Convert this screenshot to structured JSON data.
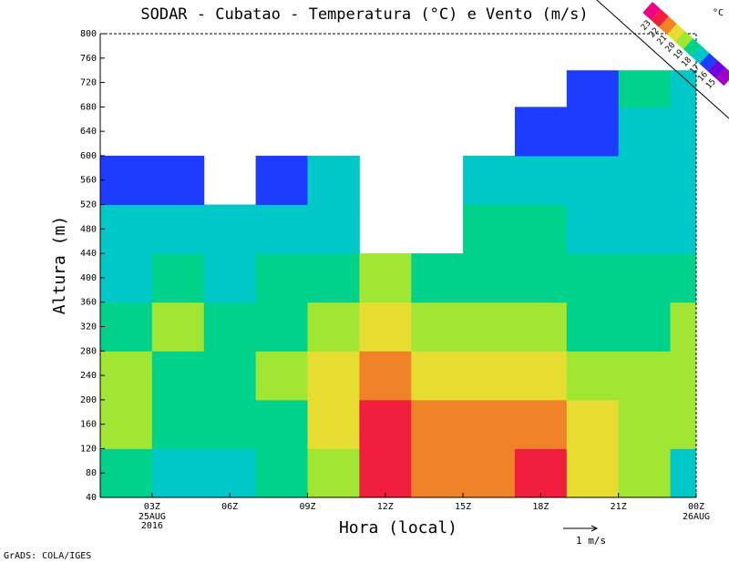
{
  "chart_data": {
    "type": "contour",
    "title": "SODAR - Cubatao - Temperatura (°C) e Vento (m/s)",
    "xlabel": "Hora (local)",
    "ylabel": "Altura (m)",
    "footer": "GrADS: COLA/IGES",
    "legend_unit": "°C",
    "vector_ref_label": "1 m/s",
    "xlim": [
      1,
      24
    ],
    "ylim": [
      40,
      800
    ],
    "xticks": [
      {
        "value": 3,
        "label": "03Z"
      },
      {
        "value": 6,
        "label": "06Z"
      },
      {
        "value": 9,
        "label": "09Z"
      },
      {
        "value": 12,
        "label": "12Z"
      },
      {
        "value": 15,
        "label": "15Z"
      },
      {
        "value": 18,
        "label": "18Z"
      },
      {
        "value": 21,
        "label": "21Z"
      },
      {
        "value": 24,
        "label": "00Z"
      }
    ],
    "x_date_labels": [
      {
        "tick": 3,
        "lines": [
          "25AUG",
          "2016"
        ]
      },
      {
        "tick": 24,
        "lines": [
          "26AUG"
        ]
      }
    ],
    "yticks": [
      40,
      80,
      120,
      160,
      200,
      240,
      280,
      320,
      360,
      400,
      440,
      480,
      520,
      560,
      600,
      640,
      680,
      720,
      760,
      800
    ],
    "levels": [
      15,
      16,
      17,
      18,
      19,
      20,
      21,
      22,
      23
    ],
    "colors": [
      "#a000c8",
      "#6e00dc",
      "#1e3cff",
      "#00c8c8",
      "#00d28c",
      "#a0e632",
      "#e6dc32",
      "#f08228",
      "#f01e3c",
      "#f00082"
    ],
    "x": [
      2,
      4,
      6,
      8,
      10,
      12,
      14,
      16,
      18,
      20,
      22,
      24
    ],
    "y": [
      80,
      160,
      240,
      320,
      400,
      480,
      560,
      640,
      720,
      760
    ],
    "z": [
      [
        18.5,
        17.5,
        17.5,
        18.5,
        19.5,
        22.5,
        21.5,
        21.5,
        22.5,
        20.5,
        19.5,
        17.5
      ],
      [
        19.5,
        18.5,
        18.5,
        18.5,
        20.5,
        22.5,
        21.5,
        21.5,
        21.5,
        20.5,
        19.5,
        19.5
      ],
      [
        19.5,
        18.5,
        18.5,
        19.5,
        20.5,
        21.5,
        20.5,
        20.5,
        20.5,
        19.5,
        19.5,
        19.5
      ],
      [
        18.5,
        19.5,
        18.5,
        18.5,
        19.5,
        20.5,
        19.5,
        19.5,
        19.5,
        18.5,
        18.5,
        19.5
      ],
      [
        17.5,
        18.5,
        17.5,
        18.5,
        18.5,
        19.5,
        18.5,
        18.5,
        18.5,
        18.5,
        18.5,
        18.5
      ],
      [
        17.5,
        17.5,
        17.5,
        17.5,
        17.5,
        null,
        null,
        18.5,
        18.5,
        17.5,
        17.5,
        17.5
      ],
      [
        16.5,
        16.5,
        null,
        16.5,
        17.5,
        null,
        null,
        17.5,
        17.5,
        17.5,
        17.5,
        17.5
      ],
      [
        null,
        null,
        null,
        null,
        null,
        null,
        null,
        null,
        16.5,
        16.5,
        17.5,
        17.5
      ],
      [
        null,
        null,
        null,
        null,
        null,
        null,
        null,
        null,
        null,
        16.5,
        18.5,
        17.5
      ],
      [
        null,
        null,
        null,
        null,
        null,
        null,
        null,
        null,
        null,
        null,
        null,
        null
      ]
    ]
  }
}
